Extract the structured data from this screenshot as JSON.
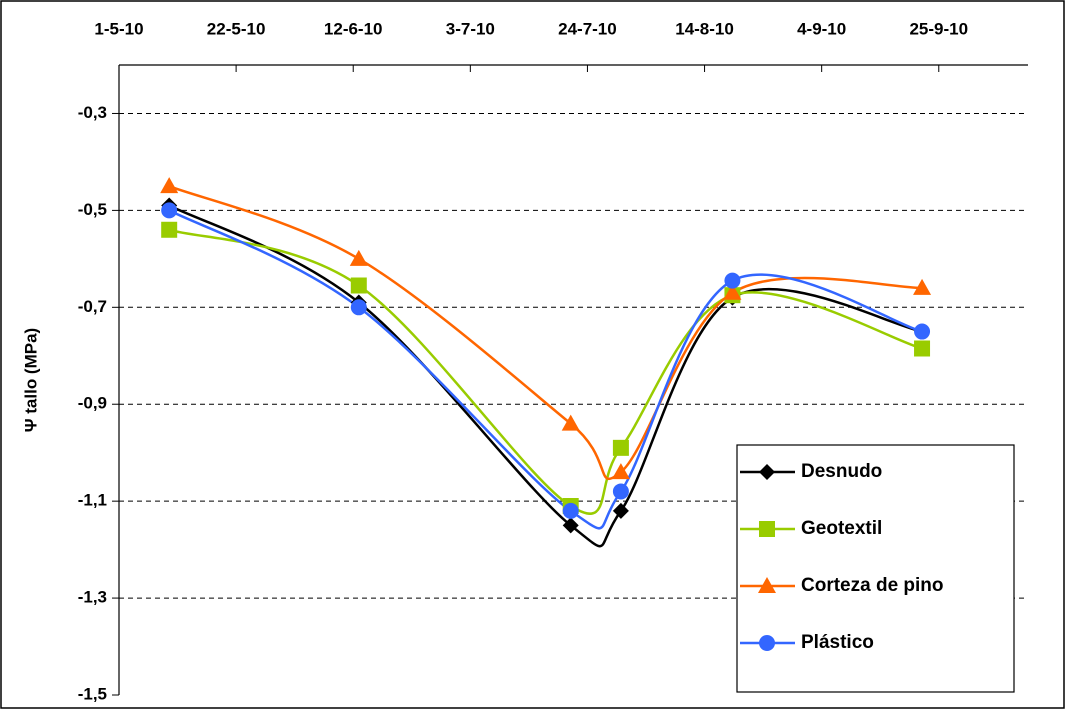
{
  "chart_data": {
    "type": "line",
    "y_label": "Ψ tallo (MPa)",
    "x": [
      "2010-05-10",
      "2010-06-13",
      "2010-07-21",
      "2010-07-30",
      "2010-08-19",
      "2010-09-22"
    ],
    "series": [
      {
        "name": "Desnudo",
        "color": "#000000",
        "marker": "diamond",
        "values": [
          -0.49,
          -0.69,
          -1.15,
          -1.12,
          -0.68,
          -0.75
        ]
      },
      {
        "name": "Geotextil",
        "color": "#99cc00",
        "marker": "square",
        "values": [
          -0.54,
          -0.655,
          -1.11,
          -0.99,
          -0.675,
          -0.785
        ]
      },
      {
        "name": "Corteza de pino",
        "color": "#ff6600",
        "marker": "triangle",
        "values": [
          -0.45,
          -0.6,
          -0.94,
          -1.04,
          -0.67,
          -0.66
        ]
      },
      {
        "name": "Plástico",
        "color": "#3366ff",
        "marker": "circle",
        "values": [
          -0.5,
          -0.7,
          -1.12,
          -1.08,
          -0.645,
          -0.75
        ]
      }
    ],
    "xlim": [
      "2010-05-01",
      "2010-10-11"
    ],
    "xticks": [
      {
        "value": "2010-05-01",
        "label": "1-5-10"
      },
      {
        "value": "2010-05-22",
        "label": "22-5-10"
      },
      {
        "value": "2010-06-12",
        "label": "12-6-10"
      },
      {
        "value": "2010-07-03",
        "label": "3-7-10"
      },
      {
        "value": "2010-07-24",
        "label": "24-7-10"
      },
      {
        "value": "2010-08-14",
        "label": "14-8-10"
      },
      {
        "value": "2010-09-04",
        "label": "4-9-10"
      },
      {
        "value": "2010-09-25",
        "label": "25-9-10"
      }
    ],
    "ylim": [
      -1.5,
      -0.2
    ],
    "yticks": [
      {
        "value": -1.5,
        "label": "-1,5"
      },
      {
        "value": -1.3,
        "label": "-1,3"
      },
      {
        "value": -1.1,
        "label": "-1,1"
      },
      {
        "value": -0.9,
        "label": "-0,9"
      },
      {
        "value": -0.7,
        "label": "-0,7"
      },
      {
        "value": -0.5,
        "label": "-0,5"
      },
      {
        "value": -0.3,
        "label": "-0,3"
      }
    ],
    "grid": true,
    "smooth": true,
    "legend": "lower right"
  }
}
